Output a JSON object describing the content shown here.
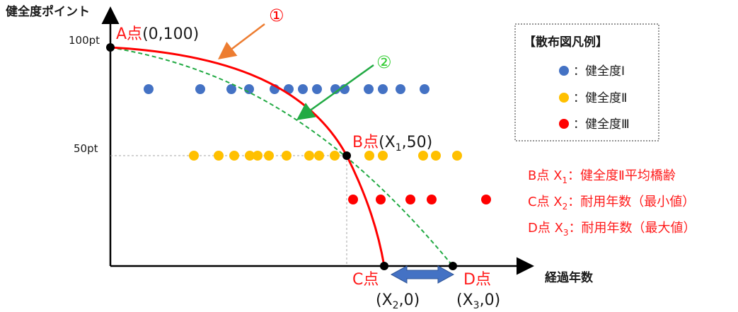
{
  "axes": {
    "y_title": "健全度ポイント",
    "x_title": "経過年数",
    "y_ticks": [
      "100pt",
      "50pt"
    ]
  },
  "points": {
    "a": {
      "name": "A点",
      "coord": "(0,100)"
    },
    "b": {
      "name": "B点",
      "coord_pre": "(X",
      "sub": "1",
      "coord_post": ",50)"
    },
    "c": {
      "name": "C点",
      "coord_pre": "(X",
      "sub": "2",
      "coord_post": ",0)"
    },
    "d": {
      "name": "D点",
      "coord_pre": "(X",
      "sub": "3",
      "coord_post": ",0)"
    }
  },
  "curve_markers": [
    "①",
    "②"
  ],
  "legend": {
    "title": "【散布図凡例】",
    "items": [
      {
        "label": "：健全度Ⅰ",
        "color": "#4472c4"
      },
      {
        "label": "：健全度Ⅱ",
        "color": "#ffc000"
      },
      {
        "label": "：健全度Ⅲ",
        "color": "#ff0000"
      }
    ]
  },
  "notes": [
    {
      "pre": "B点 X",
      "sub": "1",
      "post": "：健全度Ⅱ平均橋齢"
    },
    {
      "pre": "C点 X",
      "sub": "2",
      "post": "：耐用年数（最小値）"
    },
    {
      "pre": "D点 X",
      "sub": "3",
      "post": "：耐用年数（最大値）"
    }
  ],
  "colors": {
    "curve1": "#ff0000",
    "curve2": "#22aa44",
    "arrow1": "#ed7d31",
    "arrow2": "#22aa44",
    "range_arrow": "#4472c4"
  },
  "scatter": {
    "health_1_x": [
      210,
      283,
      327,
      352,
      388,
      408,
      428,
      448,
      474,
      487,
      521,
      541,
      566,
      600
    ],
    "health_2_x": [
      274,
      309,
      331,
      353,
      364,
      380,
      405,
      437,
      451,
      473,
      522,
      541,
      598,
      616,
      646
    ],
    "health_3_x": [
      499,
      538,
      580,
      610,
      687
    ]
  }
}
